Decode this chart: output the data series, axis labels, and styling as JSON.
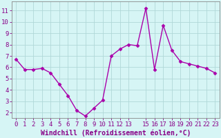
{
  "x": [
    0,
    1,
    2,
    3,
    4,
    5,
    6,
    7,
    8,
    9,
    10,
    11,
    12,
    13,
    14,
    15,
    16,
    17,
    18,
    19,
    20,
    21,
    22,
    23
  ],
  "y": [
    6.7,
    5.8,
    5.8,
    5.9,
    5.5,
    4.5,
    3.5,
    2.2,
    1.7,
    2.4,
    3.1,
    7.0,
    7.6,
    8.0,
    7.9,
    11.2,
    5.8,
    9.7,
    7.5,
    6.5,
    6.3,
    6.1,
    5.9,
    5.5
  ],
  "line_color": "#aa00aa",
  "marker": "D",
  "markersize": 2.5,
  "linewidth": 1.0,
  "bg_color": "#d6f5f5",
  "grid_color": "#b0d8d8",
  "xlabel": "Windchill (Refroidissement éolien,°C)",
  "xlabel_color": "#880088",
  "xlabel_fontsize": 7,
  "tick_color": "#880088",
  "tick_fontsize": 6.5,
  "ylim": [
    1.5,
    11.8
  ],
  "xlim": [
    -0.5,
    23.5
  ],
  "yticks": [
    2,
    3,
    4,
    5,
    6,
    7,
    8,
    9,
    10,
    11
  ],
  "xticks": [
    0,
    1,
    2,
    3,
    4,
    5,
    6,
    7,
    8,
    9,
    10,
    11,
    12,
    13,
    15,
    16,
    17,
    18,
    19,
    20,
    21,
    22,
    23
  ],
  "xtick_labels": [
    "0",
    "1",
    "2",
    "3",
    "4",
    "5",
    "6",
    "7",
    "8",
    "9",
    "10",
    "11",
    "12",
    "13",
    "15",
    "16",
    "17",
    "18",
    "19",
    "20",
    "21",
    "22",
    "23"
  ]
}
